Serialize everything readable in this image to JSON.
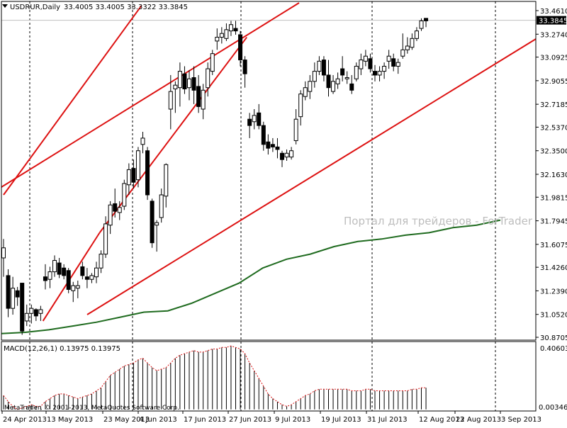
{
  "header": {
    "symbol_label": "USDRUR,Daily",
    "ohlc": "33.4005 33.4005 33.3322 33.3845"
  },
  "watermark": "Портал для трейдеров - ForTrader",
  "copyright": "MetaTrader, © 2001-2013, MetaQuotes Software Corp.",
  "indicator": {
    "label": "MACD(12,26,1) 0.13975 0.13975",
    "axis_top": "0.40603",
    "axis_bottom": "0.003464"
  },
  "price_axis": {
    "ticks": [
      "33.4610",
      "33.2740",
      "33.0925",
      "32.9055",
      "32.7185",
      "32.5370",
      "32.3500",
      "32.1630",
      "31.9815",
      "31.7945",
      "31.6075",
      "31.4260",
      "31.2390",
      "31.0520",
      "30.8705"
    ],
    "current_price": "33.3845"
  },
  "x_axis": {
    "labels": [
      "24 Apr 2013",
      "13 May 2013",
      "23 May 2013",
      "4 Jun 2013",
      "17 Jun 2013",
      "27 Jun 2013",
      "9 Jul 2013",
      "19 Jul 2013",
      "31 Jul 2013",
      "12 Aug 2013",
      "22 Aug 2013",
      "3 Sep 2013"
    ]
  },
  "colors": {
    "candle_outline": "#000000",
    "up_body": "#ffffff",
    "down_body": "#000000",
    "channel": "#dd1111",
    "moving_average": "#1f6b1f",
    "macd_hist": "#000000",
    "macd_signal": "#dd1111",
    "grid": "#000000"
  },
  "chart_data": {
    "type": "candlestick",
    "title": "USDRUR,Daily",
    "ylim": [
      30.8705,
      33.461
    ],
    "candles": [
      {
        "o": 31.5,
        "h": 31.65,
        "l": 31.35,
        "c": 31.58
      },
      {
        "o": 31.36,
        "h": 31.41,
        "l": 31.03,
        "c": 31.1
      },
      {
        "o": 31.1,
        "h": 31.35,
        "l": 31.05,
        "c": 31.26
      },
      {
        "o": 31.24,
        "h": 31.27,
        "l": 31.12,
        "c": 31.19
      },
      {
        "o": 31.3,
        "h": 31.3,
        "l": 30.89,
        "c": 30.92
      },
      {
        "o": 31.0,
        "h": 31.13,
        "l": 30.96,
        "c": 31.06
      },
      {
        "o": 31.06,
        "h": 31.13,
        "l": 30.98,
        "c": 31.1
      },
      {
        "o": 31.09,
        "h": 31.1,
        "l": 31.0,
        "c": 31.04
      },
      {
        "o": 31.06,
        "h": 31.12,
        "l": 31.0,
        "c": 31.09
      },
      {
        "o": 31.35,
        "h": 31.45,
        "l": 31.25,
        "c": 31.32
      },
      {
        "o": 31.33,
        "h": 31.43,
        "l": 31.26,
        "c": 31.39
      },
      {
        "o": 31.39,
        "h": 31.52,
        "l": 31.35,
        "c": 31.48
      },
      {
        "o": 31.46,
        "h": 31.5,
        "l": 31.34,
        "c": 31.37
      },
      {
        "o": 31.42,
        "h": 31.45,
        "l": 31.33,
        "c": 31.36
      },
      {
        "o": 31.4,
        "h": 31.42,
        "l": 31.22,
        "c": 31.25
      },
      {
        "o": 31.24,
        "h": 31.31,
        "l": 31.15,
        "c": 31.28
      },
      {
        "o": 31.26,
        "h": 31.32,
        "l": 31.18,
        "c": 31.28
      },
      {
        "o": 31.43,
        "h": 31.47,
        "l": 31.33,
        "c": 31.36
      },
      {
        "o": 31.35,
        "h": 31.42,
        "l": 31.26,
        "c": 31.33
      },
      {
        "o": 31.33,
        "h": 31.38,
        "l": 31.3,
        "c": 31.36
      },
      {
        "o": 31.35,
        "h": 31.47,
        "l": 31.3,
        "c": 31.42
      },
      {
        "o": 31.42,
        "h": 31.56,
        "l": 31.38,
        "c": 31.53
      },
      {
        "o": 31.53,
        "h": 31.83,
        "l": 31.5,
        "c": 31.77
      },
      {
        "o": 31.76,
        "h": 31.95,
        "l": 31.69,
        "c": 31.92
      },
      {
        "o": 31.93,
        "h": 32.05,
        "l": 31.82,
        "c": 31.87
      },
      {
        "o": 31.86,
        "h": 31.95,
        "l": 31.8,
        "c": 31.9
      },
      {
        "o": 31.91,
        "h": 32.12,
        "l": 31.88,
        "c": 32.09
      },
      {
        "o": 32.08,
        "h": 32.25,
        "l": 32.0,
        "c": 32.2
      },
      {
        "o": 32.21,
        "h": 32.28,
        "l": 32.05,
        "c": 32.1
      },
      {
        "o": 32.12,
        "h": 32.38,
        "l": 32.06,
        "c": 32.35
      },
      {
        "o": 32.4,
        "h": 32.5,
        "l": 32.33,
        "c": 32.45
      },
      {
        "o": 32.35,
        "h": 32.38,
        "l": 31.96,
        "c": 32.0
      },
      {
        "o": 31.95,
        "h": 31.97,
        "l": 31.58,
        "c": 31.62
      },
      {
        "o": 31.76,
        "h": 31.8,
        "l": 31.55,
        "c": 31.78
      },
      {
        "o": 31.82,
        "h": 32.05,
        "l": 31.78,
        "c": 32.0
      },
      {
        "o": 31.99,
        "h": 32.25,
        "l": 31.9,
        "c": 32.24
      },
      {
        "o": 32.68,
        "h": 32.95,
        "l": 32.52,
        "c": 32.82
      },
      {
        "o": 32.84,
        "h": 32.9,
        "l": 32.65,
        "c": 32.87
      },
      {
        "o": 32.85,
        "h": 33.05,
        "l": 32.7,
        "c": 32.98
      },
      {
        "o": 32.96,
        "h": 33.02,
        "l": 32.8,
        "c": 32.84
      },
      {
        "o": 32.85,
        "h": 32.99,
        "l": 32.75,
        "c": 32.92
      },
      {
        "o": 32.93,
        "h": 33.02,
        "l": 32.72,
        "c": 32.83
      },
      {
        "o": 32.86,
        "h": 32.95,
        "l": 32.65,
        "c": 32.7
      },
      {
        "o": 32.68,
        "h": 32.88,
        "l": 32.6,
        "c": 32.83
      },
      {
        "o": 32.85,
        "h": 33.05,
        "l": 32.78,
        "c": 33.0
      },
      {
        "o": 32.98,
        "h": 33.15,
        "l": 32.95,
        "c": 33.12
      },
      {
        "o": 33.22,
        "h": 33.32,
        "l": 33.15,
        "c": 33.25
      },
      {
        "o": 33.25,
        "h": 33.33,
        "l": 33.2,
        "c": 33.28
      },
      {
        "o": 33.24,
        "h": 33.36,
        "l": 33.22,
        "c": 33.31
      },
      {
        "o": 33.3,
        "h": 33.38,
        "l": 33.26,
        "c": 33.35
      },
      {
        "o": 33.32,
        "h": 33.38,
        "l": 33.27,
        "c": 33.3
      },
      {
        "o": 33.27,
        "h": 33.3,
        "l": 33.02,
        "c": 33.07
      },
      {
        "o": 33.07,
        "h": 33.1,
        "l": 32.85,
        "c": 32.96
      },
      {
        "o": 32.6,
        "h": 32.65,
        "l": 32.45,
        "c": 32.55
      },
      {
        "o": 32.58,
        "h": 32.68,
        "l": 32.52,
        "c": 32.63
      },
      {
        "o": 32.65,
        "h": 32.72,
        "l": 32.52,
        "c": 32.55
      },
      {
        "o": 32.55,
        "h": 32.58,
        "l": 32.35,
        "c": 32.4
      },
      {
        "o": 32.42,
        "h": 32.48,
        "l": 32.32,
        "c": 32.37
      },
      {
        "o": 32.4,
        "h": 32.45,
        "l": 32.34,
        "c": 32.38
      },
      {
        "o": 32.38,
        "h": 32.45,
        "l": 32.29,
        "c": 32.36
      },
      {
        "o": 32.33,
        "h": 32.35,
        "l": 32.22,
        "c": 32.28
      },
      {
        "o": 32.3,
        "h": 32.36,
        "l": 32.27,
        "c": 32.33
      },
      {
        "o": 32.3,
        "h": 32.38,
        "l": 32.28,
        "c": 32.35
      },
      {
        "o": 32.43,
        "h": 32.68,
        "l": 32.4,
        "c": 32.6
      },
      {
        "o": 32.62,
        "h": 32.83,
        "l": 32.55,
        "c": 32.8
      },
      {
        "o": 32.78,
        "h": 32.9,
        "l": 32.75,
        "c": 32.85
      },
      {
        "o": 32.82,
        "h": 32.95,
        "l": 32.76,
        "c": 32.9
      },
      {
        "o": 32.9,
        "h": 33.05,
        "l": 32.85,
        "c": 32.98
      },
      {
        "o": 32.98,
        "h": 33.1,
        "l": 32.95,
        "c": 33.06
      },
      {
        "o": 33.07,
        "h": 33.1,
        "l": 32.9,
        "c": 32.95
      },
      {
        "o": 32.95,
        "h": 33.07,
        "l": 32.78,
        "c": 32.85
      },
      {
        "o": 32.82,
        "h": 32.95,
        "l": 32.8,
        "c": 32.9
      },
      {
        "o": 32.88,
        "h": 32.97,
        "l": 32.84,
        "c": 32.92
      },
      {
        "o": 33.0,
        "h": 33.1,
        "l": 32.9,
        "c": 32.95
      },
      {
        "o": 32.92,
        "h": 32.98,
        "l": 32.88,
        "c": 32.93
      },
      {
        "o": 32.88,
        "h": 32.95,
        "l": 32.8,
        "c": 32.83
      },
      {
        "o": 32.92,
        "h": 33.05,
        "l": 32.9,
        "c": 33.02
      },
      {
        "o": 33.0,
        "h": 33.12,
        "l": 32.95,
        "c": 33.07
      },
      {
        "o": 33.06,
        "h": 33.15,
        "l": 33.02,
        "c": 33.1
      },
      {
        "o": 33.08,
        "h": 33.12,
        "l": 32.97,
        "c": 33.0
      },
      {
        "o": 32.98,
        "h": 33.03,
        "l": 32.9,
        "c": 32.95
      },
      {
        "o": 32.95,
        "h": 33.02,
        "l": 32.9,
        "c": 32.98
      },
      {
        "o": 32.98,
        "h": 33.05,
        "l": 32.92,
        "c": 33.02
      },
      {
        "o": 33.06,
        "h": 33.15,
        "l": 33.0,
        "c": 33.1
      },
      {
        "o": 33.08,
        "h": 33.12,
        "l": 32.98,
        "c": 33.02
      },
      {
        "o": 33.02,
        "h": 33.08,
        "l": 32.96,
        "c": 33.05
      },
      {
        "o": 33.1,
        "h": 33.28,
        "l": 33.08,
        "c": 33.15
      },
      {
        "o": 33.15,
        "h": 33.25,
        "l": 33.12,
        "c": 33.18
      },
      {
        "o": 33.17,
        "h": 33.28,
        "l": 33.15,
        "c": 33.24
      },
      {
        "o": 33.24,
        "h": 33.33,
        "l": 33.22,
        "c": 33.3
      },
      {
        "o": 33.32,
        "h": 33.4,
        "l": 33.3,
        "c": 33.38
      },
      {
        "o": 33.4,
        "h": 33.4,
        "l": 33.33,
        "c": 33.38
      }
    ],
    "moving_average": [
      30.9,
      30.91,
      30.93,
      30.96,
      30.99,
      31.03,
      31.07,
      31.08,
      31.14,
      31.22,
      31.3,
      31.42,
      31.49,
      31.53,
      31.59,
      31.63,
      31.65,
      31.68,
      31.7,
      31.74,
      31.76,
      31.8
    ],
    "channel_lines": [
      {
        "name": "upper",
        "points": [
          [
            0,
            32.0
          ],
          [
            29.7,
            33.5
          ]
        ]
      },
      {
        "name": "lower_1",
        "points": [
          [
            8.5,
            31.0
          ],
          [
            20.7,
            31.7
          ]
        ]
      },
      {
        "name": "lower_2",
        "points": [
          [
            20.7,
            31.7
          ],
          [
            52.4,
            33.25
          ]
        ]
      }
    ],
    "macd": {
      "label": "MACD(12,26,1)",
      "value": 0.13975,
      "ylim": [
        0.003464,
        0.40603
      ],
      "hist": [
        0.09,
        0.05,
        0.02,
        0.0,
        0.01,
        0.02,
        0.03,
        0.02,
        0.02,
        0.05,
        0.07,
        0.09,
        0.1,
        0.1,
        0.09,
        0.08,
        0.07,
        0.08,
        0.09,
        0.1,
        0.12,
        0.14,
        0.18,
        0.22,
        0.24,
        0.26,
        0.28,
        0.29,
        0.3,
        0.32,
        0.33,
        0.3,
        0.27,
        0.25,
        0.26,
        0.27,
        0.3,
        0.33,
        0.35,
        0.36,
        0.37,
        0.38,
        0.37,
        0.37,
        0.38,
        0.39,
        0.39,
        0.4,
        0.4,
        0.41,
        0.4,
        0.39,
        0.36,
        0.3,
        0.25,
        0.2,
        0.15,
        0.1,
        0.07,
        0.05,
        0.03,
        0.02,
        0.03,
        0.05,
        0.07,
        0.09,
        0.1,
        0.12,
        0.13,
        0.13,
        0.13,
        0.13,
        0.13,
        0.13,
        0.13,
        0.12,
        0.12,
        0.12,
        0.13,
        0.13,
        0.12,
        0.12,
        0.12,
        0.12,
        0.12,
        0.12,
        0.12,
        0.12,
        0.13,
        0.13,
        0.14,
        0.14
      ]
    }
  }
}
